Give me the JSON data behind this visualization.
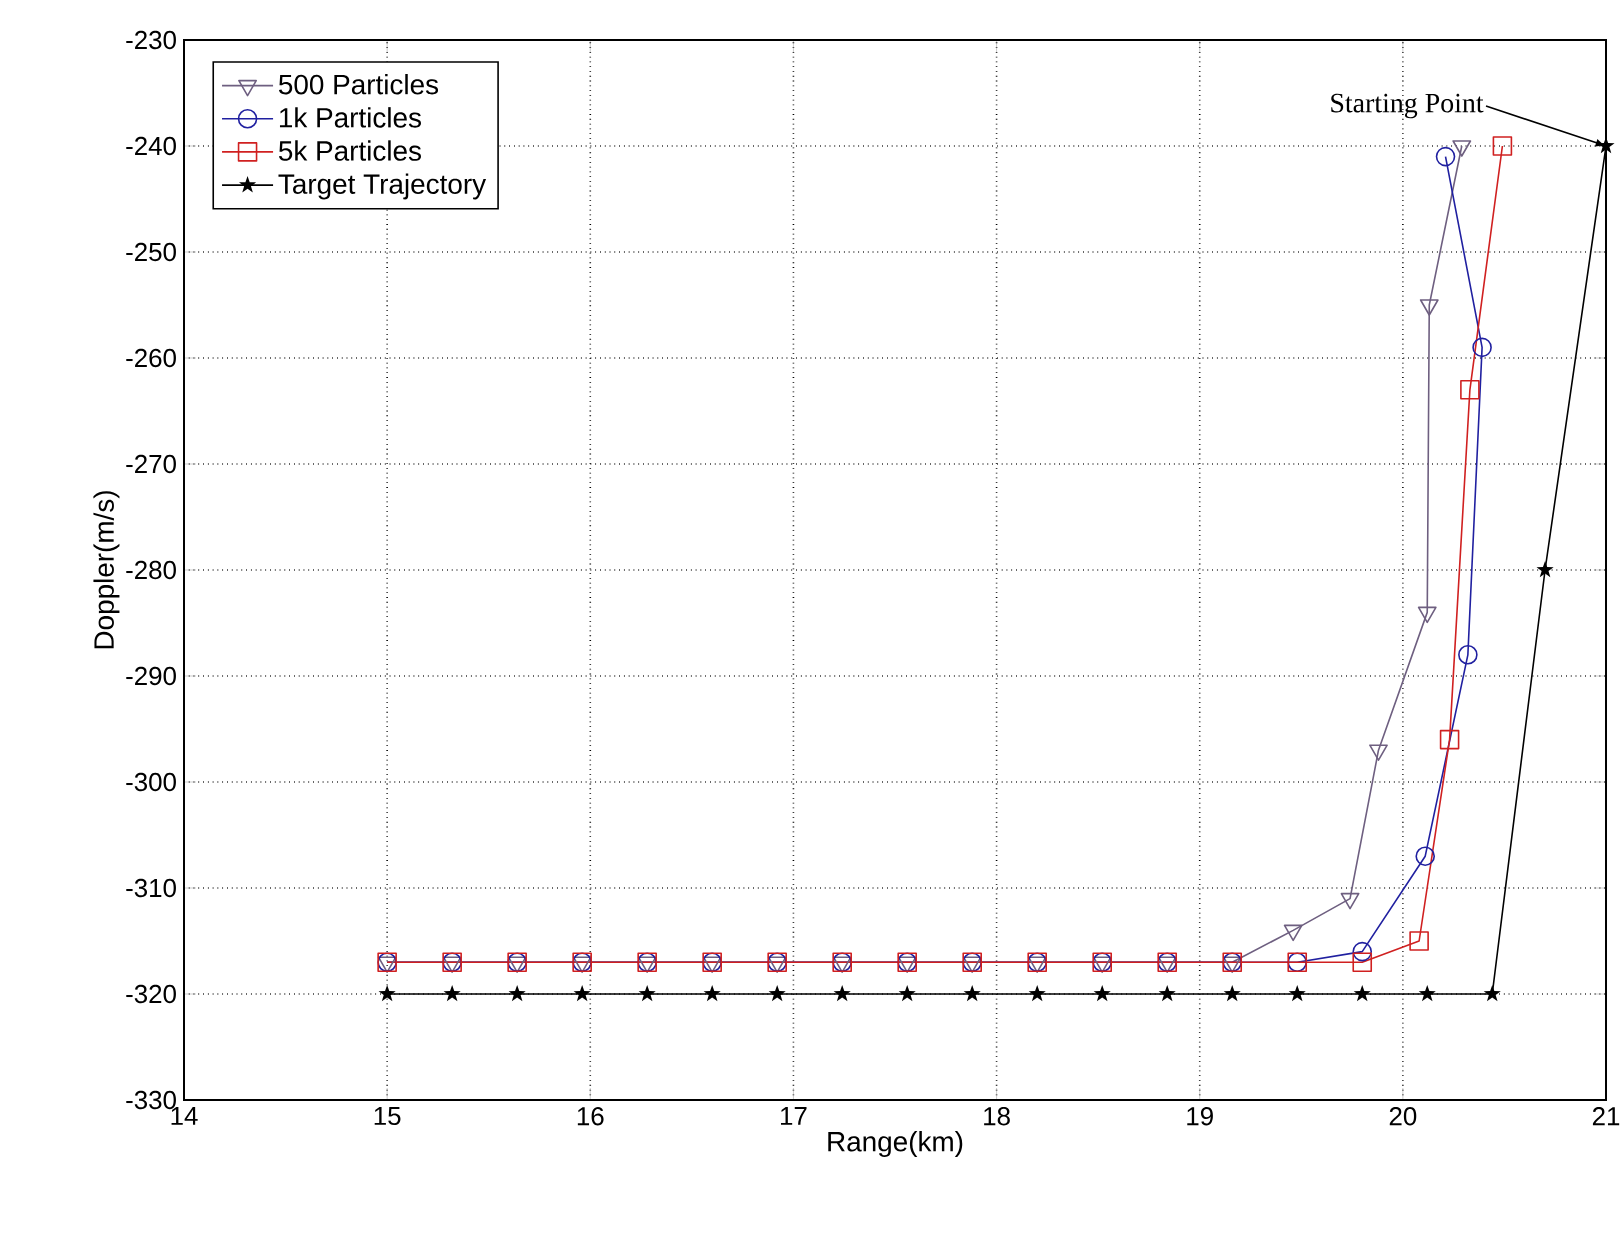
{
  "chart_data": {
    "type": "line",
    "xlabel": "Range(km)",
    "ylabel": "Doppler(m/s)",
    "xlim": [
      14,
      21
    ],
    "ylim": [
      -330,
      -230
    ],
    "xticks": [
      14,
      15,
      16,
      17,
      18,
      19,
      20,
      21
    ],
    "yticks": [
      -330,
      -320,
      -310,
      -300,
      -290,
      -280,
      -270,
      -260,
      -250,
      -240,
      -230
    ],
    "grid": true,
    "legend": "top left",
    "line_style": "solid",
    "annotations": [
      {
        "text": "Starting Point",
        "x": 21,
        "y": -240
      }
    ],
    "series": [
      {
        "name": "500 Particles",
        "color": "#6e5f80",
        "marker": "triangle",
        "x": [
          15.0,
          15.32,
          15.64,
          15.96,
          16.28,
          16.6,
          16.92,
          17.24,
          17.56,
          17.88,
          18.2,
          18.52,
          18.84,
          19.16,
          19.46,
          19.74,
          19.88,
          20.12,
          20.13,
          20.29
        ],
        "values": [
          -317,
          -317,
          -317,
          -317,
          -317,
          -317,
          -317,
          -317,
          -317,
          -317,
          -317,
          -317,
          -317,
          -317,
          -314,
          -311,
          -297,
          -284,
          -255,
          -240
        ]
      },
      {
        "name": "1k Particles",
        "color": "#2020a0",
        "marker": "circle",
        "x": [
          15.0,
          15.32,
          15.64,
          15.96,
          16.28,
          16.6,
          16.92,
          17.24,
          17.56,
          17.88,
          18.2,
          18.52,
          18.84,
          19.16,
          19.48,
          19.8,
          20.11,
          20.32,
          20.39,
          20.21
        ],
        "values": [
          -317,
          -317,
          -317,
          -317,
          -317,
          -317,
          -317,
          -317,
          -317,
          -317,
          -317,
          -317,
          -317,
          -317,
          -317,
          -316,
          -307,
          -288,
          -259,
          -241
        ]
      },
      {
        "name": "5k Particles",
        "color": "#d02020",
        "marker": "square",
        "x": [
          15.0,
          15.32,
          15.64,
          15.96,
          16.28,
          16.6,
          16.92,
          17.24,
          17.56,
          17.88,
          18.2,
          18.52,
          18.84,
          19.16,
          19.48,
          19.8,
          20.08,
          20.23,
          20.33,
          20.49
        ],
        "values": [
          -317,
          -317,
          -317,
          -317,
          -317,
          -317,
          -317,
          -317,
          -317,
          -317,
          -317,
          -317,
          -317,
          -317,
          -317,
          -317,
          -315,
          -296,
          -263,
          -240
        ]
      },
      {
        "name": "Target Trajectory",
        "color": "#000000",
        "marker": "star",
        "x": [
          15.0,
          15.32,
          15.64,
          15.96,
          16.28,
          16.6,
          16.92,
          17.24,
          17.56,
          17.88,
          18.2,
          18.52,
          18.84,
          19.16,
          19.48,
          19.8,
          20.12,
          20.44,
          20.7,
          21.0
        ],
        "values": [
          -320,
          -320,
          -320,
          -320,
          -320,
          -320,
          -320,
          -320,
          -320,
          -320,
          -320,
          -320,
          -320,
          -320,
          -320,
          -320,
          -320,
          -320,
          -280,
          -240
        ]
      }
    ]
  }
}
